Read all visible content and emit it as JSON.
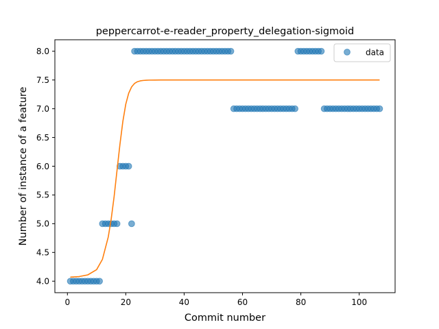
{
  "chart_data": {
    "type": "scatter",
    "title": "peppercarrot-e-reader_property_delegation-sigmoid",
    "xlabel": "Commit number",
    "ylabel": "Number of instance of a feature",
    "xlim": [
      -4.3,
      112.3
    ],
    "ylim": [
      3.8,
      8.2
    ],
    "xticks": [
      0,
      20,
      40,
      60,
      80,
      100
    ],
    "xtick_labels": [
      "0",
      "20",
      "40",
      "60",
      "80",
      "100"
    ],
    "yticks": [
      4.0,
      4.5,
      5.0,
      5.5,
      6.0,
      6.5,
      7.0,
      7.5,
      8.0
    ],
    "ytick_labels": [
      "4.0",
      "4.5",
      "5.0",
      "5.5",
      "6.0",
      "6.5",
      "7.0",
      "7.5",
      "8.0"
    ],
    "grid": false,
    "legend": {
      "position": "top-right",
      "entries": [
        "data"
      ]
    },
    "series": [
      {
        "name": "data",
        "kind": "scatter",
        "color": "#1f77b4",
        "x": [
          1,
          2,
          3,
          4,
          5,
          6,
          7,
          8,
          9,
          10,
          11,
          12,
          13,
          14,
          15,
          16,
          17,
          18,
          19,
          20,
          21,
          22,
          23,
          24,
          25,
          26,
          27,
          28,
          29,
          30,
          31,
          32,
          33,
          34,
          35,
          36,
          37,
          38,
          39,
          40,
          41,
          42,
          43,
          44,
          45,
          46,
          47,
          48,
          49,
          50,
          51,
          52,
          53,
          54,
          55,
          56,
          57,
          58,
          59,
          60,
          61,
          62,
          63,
          64,
          65,
          66,
          67,
          68,
          69,
          70,
          71,
          72,
          73,
          74,
          75,
          76,
          77,
          78,
          79,
          80,
          81,
          82,
          83,
          84,
          85,
          86,
          87,
          88,
          89,
          90,
          91,
          92,
          93,
          94,
          95,
          96,
          97,
          98,
          99,
          100,
          101,
          102,
          103,
          104,
          105,
          106,
          107
        ],
        "y": [
          4,
          4,
          4,
          4,
          4,
          4,
          4,
          4,
          4,
          4,
          4,
          5,
          5,
          5,
          5,
          5,
          5,
          6,
          6,
          6,
          6,
          5,
          8,
          8,
          8,
          8,
          8,
          8,
          8,
          8,
          8,
          8,
          8,
          8,
          8,
          8,
          8,
          8,
          8,
          8,
          8,
          8,
          8,
          8,
          8,
          8,
          8,
          8,
          8,
          8,
          8,
          8,
          8,
          8,
          8,
          8,
          7,
          7,
          7,
          7,
          7,
          7,
          7,
          7,
          7,
          7,
          7,
          7,
          7,
          7,
          7,
          7,
          7,
          7,
          7,
          7,
          7,
          7,
          8,
          8,
          8,
          8,
          8,
          8,
          8,
          8,
          8,
          7,
          7,
          7,
          7,
          7,
          7,
          7,
          7,
          7,
          7,
          7,
          7,
          7,
          7,
          7,
          7,
          7,
          7,
          7,
          7
        ]
      },
      {
        "name": "",
        "kind": "line",
        "color": "#ff7f0e",
        "x": [
          1,
          4,
          7,
          10,
          12,
          14,
          15,
          16,
          17,
          18,
          19,
          20,
          21,
          22,
          23,
          24,
          25,
          26,
          27,
          28,
          30,
          32,
          35,
          40,
          50,
          60,
          80,
          107
        ],
        "y": [
          4.07,
          4.08,
          4.11,
          4.2,
          4.38,
          4.77,
          5.08,
          5.47,
          5.93,
          6.38,
          6.78,
          7.08,
          7.27,
          7.38,
          7.44,
          7.47,
          7.485,
          7.492,
          7.496,
          7.498,
          7.499,
          7.5,
          7.5,
          7.5,
          7.5,
          7.5,
          7.5,
          7.5
        ]
      }
    ]
  }
}
